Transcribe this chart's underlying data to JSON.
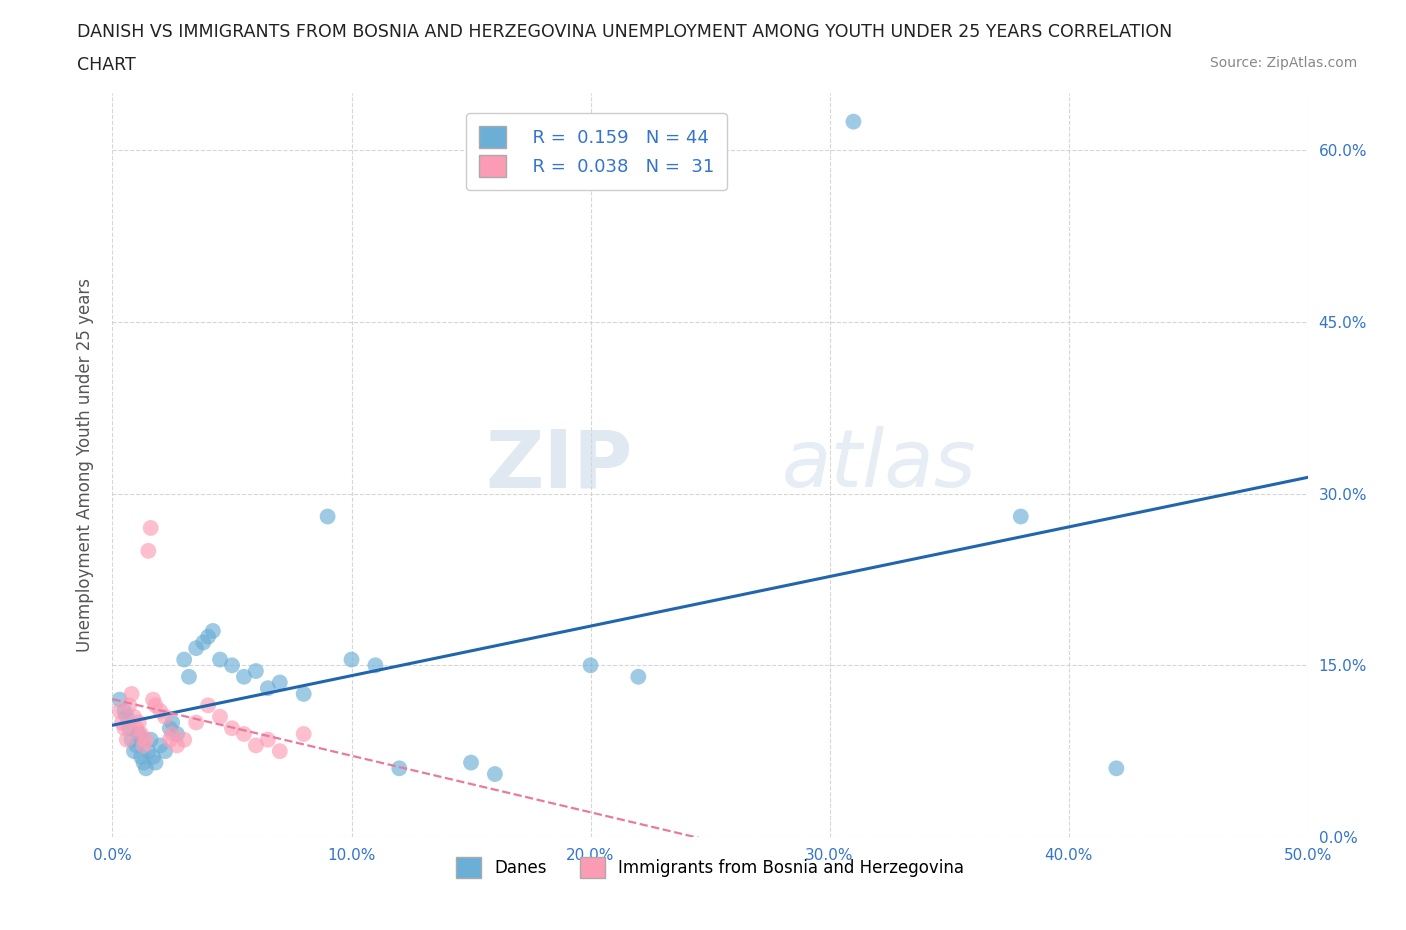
{
  "title_line1": "DANISH VS IMMIGRANTS FROM BOSNIA AND HERZEGOVINA UNEMPLOYMENT AMONG YOUTH UNDER 25 YEARS CORRELATION",
  "title_line2": "CHART",
  "source": "Source: ZipAtlas.com",
  "ylabel": "Unemployment Among Youth under 25 years",
  "xlabel_ticks": [
    "0.0%",
    "10.0%",
    "20.0%",
    "30.0%",
    "40.0%",
    "50.0%"
  ],
  "xlabel_vals": [
    0.0,
    0.1,
    0.2,
    0.3,
    0.4,
    0.5
  ],
  "ytick_labels": [
    "0.0%",
    "15.0%",
    "30.0%",
    "45.0%",
    "60.0%"
  ],
  "ytick_vals": [
    0.0,
    0.15,
    0.3,
    0.45,
    0.6
  ],
  "xlim": [
    0.0,
    0.5
  ],
  "ylim": [
    0.0,
    0.65
  ],
  "legend_danes": "Danes",
  "legend_immigrants": "Immigrants from Bosnia and Herzegovina",
  "R_danes": 0.159,
  "N_danes": 44,
  "R_immigrants": 0.038,
  "N_immigrants": 31,
  "danes_color": "#6baed6",
  "immigrants_color": "#fc9cb4",
  "danes_line_color": "#2166ac",
  "immigrants_line_color": "#e87aa0",
  "background_color": "#ffffff",
  "watermark_zip": "ZIP",
  "watermark_atlas": "atlas",
  "danes_x": [
    0.003,
    0.005,
    0.006,
    0.007,
    0.008,
    0.009,
    0.01,
    0.011,
    0.012,
    0.013,
    0.014,
    0.015,
    0.016,
    0.017,
    0.018,
    0.02,
    0.022,
    0.024,
    0.025,
    0.027,
    0.03,
    0.032,
    0.035,
    0.038,
    0.04,
    0.042,
    0.045,
    0.05,
    0.055,
    0.06,
    0.065,
    0.07,
    0.08,
    0.09,
    0.1,
    0.11,
    0.12,
    0.15,
    0.16,
    0.2,
    0.22,
    0.31,
    0.38,
    0.42
  ],
  "danes_y": [
    0.12,
    0.11,
    0.105,
    0.095,
    0.085,
    0.075,
    0.08,
    0.09,
    0.07,
    0.065,
    0.06,
    0.075,
    0.085,
    0.07,
    0.065,
    0.08,
    0.075,
    0.095,
    0.1,
    0.09,
    0.155,
    0.14,
    0.165,
    0.17,
    0.175,
    0.18,
    0.155,
    0.15,
    0.14,
    0.145,
    0.13,
    0.135,
    0.125,
    0.28,
    0.155,
    0.15,
    0.06,
    0.065,
    0.055,
    0.15,
    0.14,
    0.625,
    0.28,
    0.06
  ],
  "immigrants_x": [
    0.003,
    0.004,
    0.005,
    0.006,
    0.007,
    0.008,
    0.009,
    0.01,
    0.011,
    0.012,
    0.013,
    0.014,
    0.015,
    0.016,
    0.017,
    0.018,
    0.02,
    0.022,
    0.024,
    0.025,
    0.027,
    0.03,
    0.035,
    0.04,
    0.045,
    0.05,
    0.055,
    0.06,
    0.065,
    0.07,
    0.08
  ],
  "immigrants_y": [
    0.11,
    0.1,
    0.095,
    0.085,
    0.115,
    0.125,
    0.105,
    0.095,
    0.1,
    0.09,
    0.08,
    0.085,
    0.25,
    0.27,
    0.12,
    0.115,
    0.11,
    0.105,
    0.085,
    0.09,
    0.08,
    0.085,
    0.1,
    0.115,
    0.105,
    0.095,
    0.09,
    0.08,
    0.085,
    0.075,
    0.09
  ]
}
